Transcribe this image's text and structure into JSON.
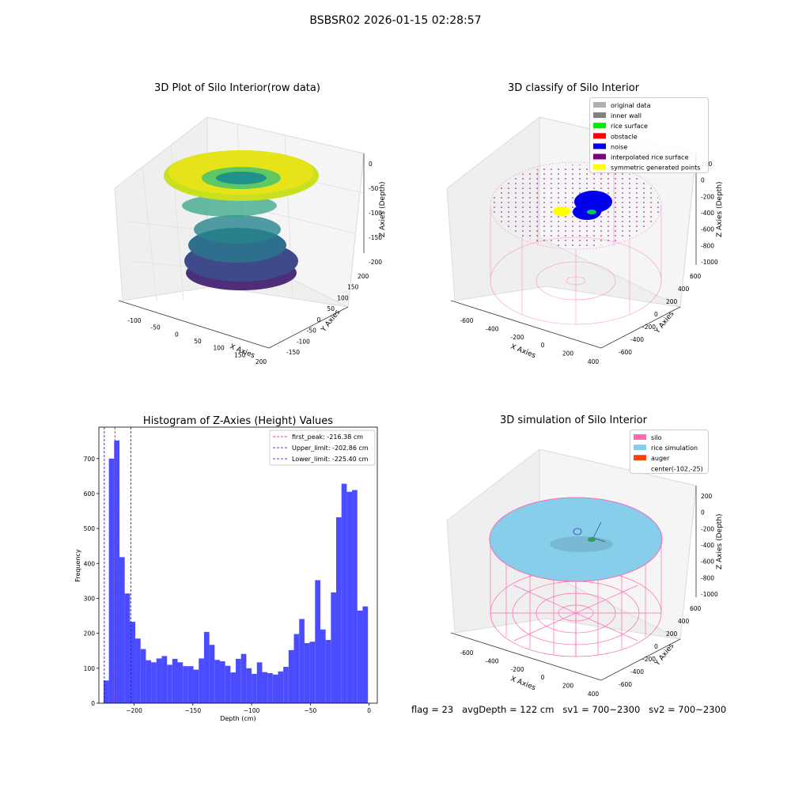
{
  "suptitle": "BSBSR02 2026-01-15 02:28:57",
  "panels": {
    "raw": {
      "title": "3D Plot of Silo Interior(row data)",
      "xlabel": "X Axies",
      "ylabel": "Y Axies",
      "zlabel": "Z Axies (Depth)",
      "xticks": [
        "-100",
        "-50",
        "0",
        "50",
        "100",
        "150",
        "200"
      ],
      "yticks": [
        "-150",
        "-100",
        "-50",
        "0",
        "50",
        "100",
        "150",
        "200"
      ],
      "zticks": [
        "0",
        "-50",
        "-100",
        "-150",
        "-200"
      ]
    },
    "classify": {
      "title": "3D classify of Silo Interior",
      "xlabel": "X Axies",
      "ylabel": "Y Axies",
      "zlabel": "Z Axies (Depth)",
      "xticks": [
        "-600",
        "-400",
        "-200",
        "0",
        "200",
        "400"
      ],
      "yticks": [
        "-600",
        "-400",
        "-200",
        "0",
        "200",
        "400",
        "600"
      ],
      "zticks": [
        "200",
        "0",
        "-200",
        "-400",
        "-600",
        "-800",
        "-1000"
      ],
      "legend": [
        {
          "label": "original data",
          "color": "#b0b0b0"
        },
        {
          "label": "inner wall",
          "color": "#808080"
        },
        {
          "label": "rice surface",
          "color": "#00ee00"
        },
        {
          "label": "obstacle",
          "color": "#ff0000"
        },
        {
          "label": "noise",
          "color": "#0000ee"
        },
        {
          "label": "interpolated rice surface",
          "color": "#800080"
        },
        {
          "label": "symmetric generated points",
          "color": "#ffff00"
        }
      ]
    },
    "simulation": {
      "title": "3D simulation of Silo Interior",
      "xlabel": "X Axies",
      "ylabel": "Y Axies",
      "zlabel": "Z Axies (Depth)",
      "xticks": [
        "-600",
        "-400",
        "-200",
        "0",
        "200",
        "400"
      ],
      "yticks": [
        "-600",
        "-400",
        "-200",
        "0",
        "200",
        "400",
        "600"
      ],
      "zticks": [
        "200",
        "0",
        "-200",
        "-400",
        "-600",
        "-800",
        "-1000"
      ],
      "legend": [
        {
          "label": "silo",
          "color": "#ff69b4"
        },
        {
          "label": "rice simulation",
          "color": "#87ceeb"
        },
        {
          "label": "auger",
          "color": "#ff4500"
        },
        {
          "label": "center(-102,-25)",
          "color": ""
        }
      ]
    }
  },
  "stats_text": "flag = 23   avgDepth = 122 cm   sv1 = 700~2300   sv2 = 700~2300",
  "colors": {
    "bars": "#4b4bff",
    "silo": "#ff69b4",
    "rice": "#87ceeb",
    "noise": "#0000ee",
    "symmetric": "#ffff00"
  },
  "chart_data": {
    "type": "bar",
    "title": "Histogram of Z-Axies (Height) Values",
    "xlabel": "Depth (cm)",
    "ylabel": "Frequency",
    "xlim": [
      -230,
      7
    ],
    "ylim": [
      0,
      790
    ],
    "xticks": [
      -200,
      -150,
      -100,
      -50,
      0
    ],
    "xtick_labels": [
      "−200",
      "−150",
      "−100",
      "−50",
      "0"
    ],
    "yticks": [
      0,
      100,
      200,
      300,
      400,
      500,
      600,
      700
    ],
    "bin_start": -226.0,
    "bin_width": 4.5,
    "values": [
      65,
      700,
      752,
      418,
      314,
      233,
      185,
      155,
      123,
      117,
      128,
      135,
      110,
      127,
      117,
      106,
      106,
      96,
      128,
      204,
      167,
      124,
      120,
      107,
      88,
      127,
      141,
      100,
      84,
      117,
      89,
      86,
      82,
      91,
      104,
      152,
      198,
      241,
      172,
      176,
      352,
      211,
      181,
      317,
      532,
      628,
      605,
      610,
      265,
      277
    ],
    "vlines": [
      {
        "label": "first_peak: -216.38 cm",
        "x": -216.38,
        "color": "#ff0000"
      },
      {
        "label": "Upper_limit: -202.86 cm",
        "x": -202.86,
        "color": "#0000ff"
      },
      {
        "label": "Lower_limit: -225.40 cm",
        "x": -225.4,
        "color": "#0000ff"
      }
    ]
  }
}
